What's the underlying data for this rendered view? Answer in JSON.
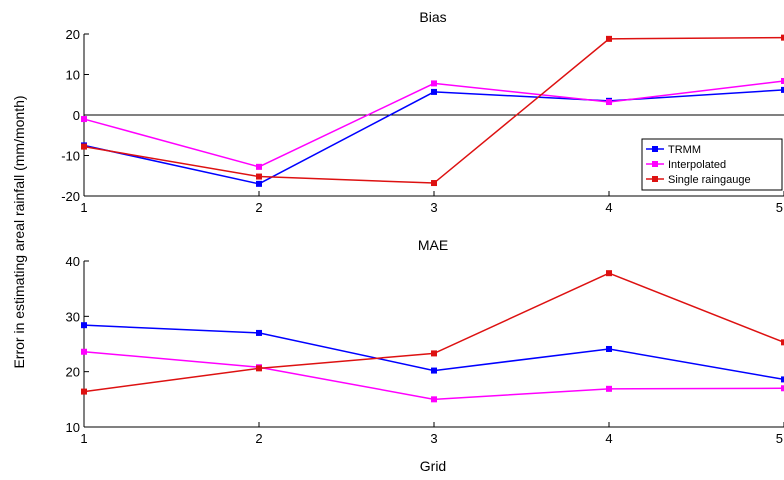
{
  "figure": {
    "ylabel": "Error in estimating areal rainfall (mm/month)",
    "xlabel": "Grid"
  },
  "chart_data": [
    {
      "type": "line",
      "title": "Bias",
      "x": [
        1,
        2,
        3,
        4,
        5
      ],
      "xticks": [
        "1",
        "2",
        "3",
        "4",
        "5"
      ],
      "ylim": [
        -20,
        20
      ],
      "yticks": [
        "-20",
        "-10",
        "0",
        "10",
        "20"
      ],
      "zero_line": true,
      "legend_position": "lower-right",
      "series": [
        {
          "name": "TRMM",
          "color": "#0000ff",
          "values": [
            -7.5,
            -17,
            5.7,
            3.5,
            6.2
          ]
        },
        {
          "name": "Interpolated",
          "color": "#ff00ff",
          "values": [
            -1,
            -12.8,
            7.8,
            3.2,
            8.4
          ]
        },
        {
          "name": "Single raingauge",
          "color": "#dd1111",
          "values": [
            -7.8,
            -15.2,
            -16.8,
            18.8,
            19.1
          ]
        }
      ]
    },
    {
      "type": "line",
      "title": "MAE",
      "x": [
        1,
        2,
        3,
        4,
        5
      ],
      "xticks": [
        "1",
        "2",
        "3",
        "4",
        "5"
      ],
      "ylim": [
        10,
        40
      ],
      "yticks": [
        "10",
        "20",
        "30",
        "40"
      ],
      "series": [
        {
          "name": "TRMM",
          "color": "#0000ff",
          "values": [
            28.4,
            27,
            20.2,
            24.1,
            18.6
          ]
        },
        {
          "name": "Interpolated",
          "color": "#ff00ff",
          "values": [
            23.6,
            20.8,
            15,
            16.9,
            17
          ]
        },
        {
          "name": "Single raingauge",
          "color": "#dd1111",
          "values": [
            16.4,
            20.6,
            23.3,
            37.8,
            25.3
          ]
        }
      ]
    }
  ]
}
